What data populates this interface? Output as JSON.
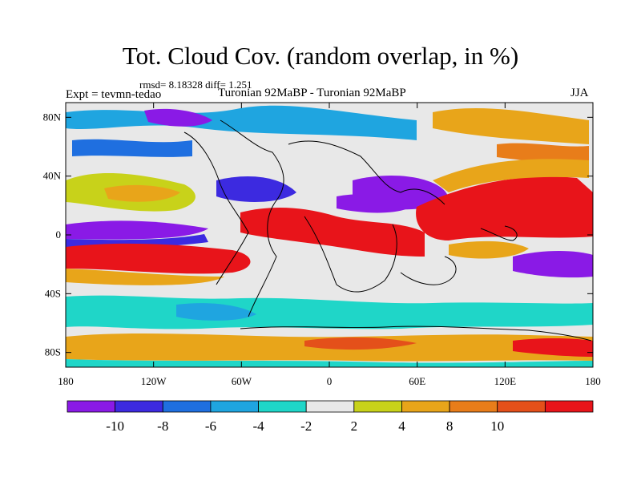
{
  "title": "Tot. Cloud Cov. (random overlap, in %)",
  "stats": "rmsd= 8.18328 diff= 1.251",
  "experiment": "Expt = tevmn-tedao",
  "comparison": "Turonian  92MaBP - Turonian  92MaBP",
  "season": "JJA",
  "map": {
    "lon_range": [
      -180,
      180
    ],
    "lat_range": [
      -90,
      90
    ],
    "x_ticks": [
      {
        "value": -180,
        "label": "180"
      },
      {
        "value": -120,
        "label": "120W"
      },
      {
        "value": -60,
        "label": "60W"
      },
      {
        "value": 0,
        "label": "0"
      },
      {
        "value": 60,
        "label": "60E"
      },
      {
        "value": 120,
        "label": "120E"
      },
      {
        "value": 180,
        "label": "180"
      }
    ],
    "y_ticks": [
      {
        "value": 80,
        "label": "80N"
      },
      {
        "value": 40,
        "label": "40N"
      },
      {
        "value": 0,
        "label": "0"
      },
      {
        "value": -40,
        "label": "40S"
      },
      {
        "value": -80,
        "label": "80S"
      }
    ]
  },
  "colorbar": {
    "colors": [
      "#8a1ae6",
      "#3c2ae0",
      "#1f6fe0",
      "#1fa5e0",
      "#1fd6c8",
      "#e8e8e8",
      "#c8d21a",
      "#e8a51a",
      "#e87d1a",
      "#e4501a",
      "#e8141a"
    ],
    "labels": [
      {
        "boundary": 1,
        "text": "-10"
      },
      {
        "boundary": 2,
        "text": "-8"
      },
      {
        "boundary": 3,
        "text": "-6"
      },
      {
        "boundary": 4,
        "text": "-4"
      },
      {
        "boundary": 5,
        "text": "-2"
      },
      {
        "boundary": 6,
        "text": "2"
      },
      {
        "boundary": 7,
        "text": "4"
      },
      {
        "boundary": 8,
        "text": "8"
      },
      {
        "boundary": 9,
        "text": "10"
      }
    ]
  }
}
